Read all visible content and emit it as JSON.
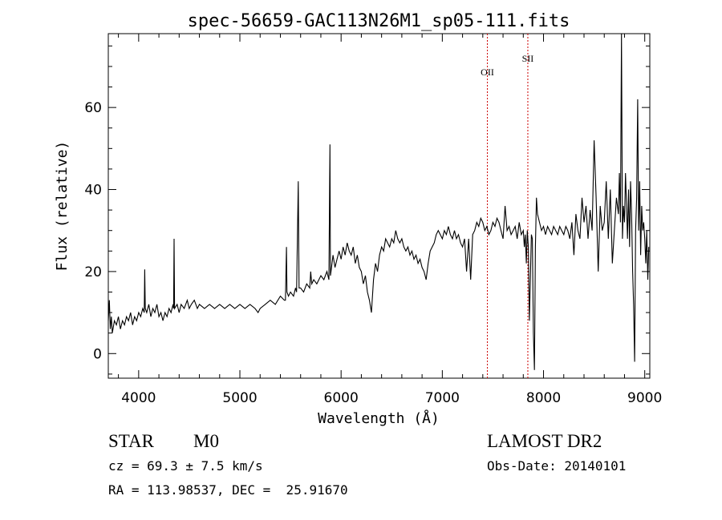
{
  "chart_data": {
    "type": "line",
    "title": "spec-56659-GAC113N26M1_sp05-111.fits",
    "xlabel": "Wavelength (Å)",
    "ylabel": "Flux (relative)",
    "xlim": [
      3700,
      9050
    ],
    "ylim": [
      -6,
      78
    ],
    "x_ticks": [
      4000,
      5000,
      6000,
      7000,
      8000,
      9000
    ],
    "x_tick_labels": [
      "4000",
      "5000",
      "6000",
      "7000",
      "8000",
      "9000"
    ],
    "y_ticks": [
      0,
      20,
      40,
      60
    ],
    "y_tick_labels": [
      "0",
      "20",
      "40",
      "60"
    ],
    "grid": false,
    "line_color": "#000000",
    "marker_color": "#cc0000",
    "lines": [
      {
        "label": "OII",
        "x": 7445
      },
      {
        "label": "SII",
        "x": 7845
      }
    ],
    "series": [
      {
        "values": [
          [
            3700,
            8
          ],
          [
            3710,
            13
          ],
          [
            3720,
            6
          ],
          [
            3730,
            9
          ],
          [
            3740,
            5
          ],
          [
            3760,
            8
          ],
          [
            3780,
            7
          ],
          [
            3800,
            9
          ],
          [
            3820,
            6
          ],
          [
            3840,
            8
          ],
          [
            3860,
            7
          ],
          [
            3880,
            9
          ],
          [
            3900,
            8
          ],
          [
            3920,
            10
          ],
          [
            3940,
            7
          ],
          [
            3960,
            9
          ],
          [
            3980,
            8
          ],
          [
            4000,
            10
          ],
          [
            4020,
            9
          ],
          [
            4040,
            11
          ],
          [
            4055,
            10
          ],
          [
            4060,
            20.5
          ],
          [
            4065,
            11
          ],
          [
            4080,
            10
          ],
          [
            4100,
            12
          ],
          [
            4120,
            9
          ],
          [
            4140,
            11
          ],
          [
            4160,
            10
          ],
          [
            4180,
            12
          ],
          [
            4200,
            9
          ],
          [
            4220,
            10
          ],
          [
            4240,
            8
          ],
          [
            4260,
            10
          ],
          [
            4280,
            9
          ],
          [
            4300,
            11
          ],
          [
            4320,
            10
          ],
          [
            4340,
            12
          ],
          [
            4345,
            11
          ],
          [
            4350,
            28
          ],
          [
            4355,
            11
          ],
          [
            4380,
            12
          ],
          [
            4400,
            10
          ],
          [
            4420,
            12
          ],
          [
            4450,
            11
          ],
          [
            4480,
            13
          ],
          [
            4500,
            11
          ],
          [
            4520,
            12
          ],
          [
            4550,
            13
          ],
          [
            4580,
            11
          ],
          [
            4600,
            12
          ],
          [
            4650,
            11
          ],
          [
            4700,
            12
          ],
          [
            4750,
            11
          ],
          [
            4800,
            12
          ],
          [
            4850,
            11
          ],
          [
            4900,
            12
          ],
          [
            4950,
            11
          ],
          [
            5000,
            12
          ],
          [
            5050,
            11
          ],
          [
            5100,
            12
          ],
          [
            5150,
            11
          ],
          [
            5180,
            10
          ],
          [
            5200,
            11
          ],
          [
            5250,
            12
          ],
          [
            5300,
            13
          ],
          [
            5350,
            12
          ],
          [
            5400,
            14
          ],
          [
            5440,
            13
          ],
          [
            5450,
            13
          ],
          [
            5460,
            26
          ],
          [
            5465,
            15
          ],
          [
            5480,
            14
          ],
          [
            5500,
            15
          ],
          [
            5530,
            14
          ],
          [
            5550,
            16
          ],
          [
            5560,
            15
          ],
          [
            5577,
            42
          ],
          [
            5585,
            16
          ],
          [
            5600,
            16
          ],
          [
            5630,
            15
          ],
          [
            5660,
            17
          ],
          [
            5690,
            16
          ],
          [
            5700,
            20
          ],
          [
            5710,
            17
          ],
          [
            5730,
            18
          ],
          [
            5760,
            17
          ],
          [
            5800,
            19
          ],
          [
            5830,
            18
          ],
          [
            5860,
            20
          ],
          [
            5880,
            18
          ],
          [
            5890,
            51
          ],
          [
            5895,
            19
          ],
          [
            5900,
            20
          ],
          [
            5920,
            24
          ],
          [
            5940,
            21
          ],
          [
            5960,
            23
          ],
          [
            5980,
            25
          ],
          [
            6000,
            23
          ],
          [
            6020,
            26
          ],
          [
            6040,
            24
          ],
          [
            6060,
            27
          ],
          [
            6080,
            25
          ],
          [
            6100,
            24
          ],
          [
            6120,
            26
          ],
          [
            6140,
            22
          ],
          [
            6160,
            24
          ],
          [
            6180,
            21
          ],
          [
            6200,
            20
          ],
          [
            6220,
            17
          ],
          [
            6240,
            19
          ],
          [
            6260,
            15
          ],
          [
            6280,
            13
          ],
          [
            6300,
            10
          ],
          [
            6320,
            18
          ],
          [
            6340,
            22
          ],
          [
            6360,
            20
          ],
          [
            6380,
            24
          ],
          [
            6400,
            26
          ],
          [
            6420,
            25
          ],
          [
            6440,
            28
          ],
          [
            6460,
            27
          ],
          [
            6480,
            26
          ],
          [
            6500,
            28
          ],
          [
            6520,
            27
          ],
          [
            6540,
            30
          ],
          [
            6560,
            28
          ],
          [
            6580,
            27
          ],
          [
            6600,
            28
          ],
          [
            6620,
            26
          ],
          [
            6640,
            25
          ],
          [
            6660,
            26
          ],
          [
            6680,
            24
          ],
          [
            6700,
            25
          ],
          [
            6720,
            23
          ],
          [
            6740,
            24
          ],
          [
            6760,
            22
          ],
          [
            6780,
            23
          ],
          [
            6800,
            21
          ],
          [
            6820,
            20
          ],
          [
            6840,
            18
          ],
          [
            6860,
            22
          ],
          [
            6880,
            25
          ],
          [
            6900,
            26
          ],
          [
            6920,
            27
          ],
          [
            6940,
            29
          ],
          [
            6960,
            30
          ],
          [
            6980,
            29
          ],
          [
            7000,
            28
          ],
          [
            7020,
            30
          ],
          [
            7040,
            29
          ],
          [
            7060,
            31
          ],
          [
            7080,
            29
          ],
          [
            7100,
            28
          ],
          [
            7120,
            30
          ],
          [
            7140,
            28
          ],
          [
            7160,
            29
          ],
          [
            7180,
            27
          ],
          [
            7200,
            26
          ],
          [
            7220,
            28
          ],
          [
            7240,
            20
          ],
          [
            7260,
            28
          ],
          [
            7280,
            18
          ],
          [
            7300,
            29
          ],
          [
            7320,
            30
          ],
          [
            7340,
            32
          ],
          [
            7360,
            31
          ],
          [
            7380,
            33
          ],
          [
            7400,
            32
          ],
          [
            7420,
            30
          ],
          [
            7440,
            31
          ],
          [
            7460,
            29
          ],
          [
            7480,
            30
          ],
          [
            7500,
            32
          ],
          [
            7520,
            31
          ],
          [
            7540,
            33
          ],
          [
            7560,
            32
          ],
          [
            7580,
            30
          ],
          [
            7600,
            28
          ],
          [
            7620,
            36
          ],
          [
            7640,
            30
          ],
          [
            7660,
            31
          ],
          [
            7680,
            29
          ],
          [
            7700,
            30
          ],
          [
            7720,
            31
          ],
          [
            7740,
            28
          ],
          [
            7760,
            32
          ],
          [
            7780,
            29
          ],
          [
            7800,
            30
          ],
          [
            7810,
            26
          ],
          [
            7820,
            29
          ],
          [
            7830,
            22
          ],
          [
            7840,
            30
          ],
          [
            7850,
            26
          ],
          [
            7860,
            8
          ],
          [
            7870,
            18
          ],
          [
            7880,
            29
          ],
          [
            7890,
            28
          ],
          [
            7900,
            5
          ],
          [
            7910,
            -4
          ],
          [
            7920,
            26
          ],
          [
            7930,
            38
          ],
          [
            7940,
            34
          ],
          [
            7960,
            32
          ],
          [
            7980,
            30
          ],
          [
            8000,
            31
          ],
          [
            8020,
            29
          ],
          [
            8040,
            31
          ],
          [
            8060,
            30
          ],
          [
            8080,
            29
          ],
          [
            8100,
            31
          ],
          [
            8120,
            30
          ],
          [
            8140,
            29
          ],
          [
            8160,
            31
          ],
          [
            8180,
            30
          ],
          [
            8200,
            29
          ],
          [
            8220,
            31
          ],
          [
            8240,
            30
          ],
          [
            8260,
            28
          ],
          [
            8280,
            32
          ],
          [
            8300,
            24
          ],
          [
            8320,
            34
          ],
          [
            8340,
            30
          ],
          [
            8360,
            28
          ],
          [
            8380,
            38
          ],
          [
            8400,
            32
          ],
          [
            8420,
            36
          ],
          [
            8440,
            28
          ],
          [
            8460,
            35
          ],
          [
            8480,
            30
          ],
          [
            8500,
            52
          ],
          [
            8520,
            38
          ],
          [
            8540,
            20
          ],
          [
            8560,
            36
          ],
          [
            8580,
            30
          ],
          [
            8600,
            32
          ],
          [
            8620,
            42
          ],
          [
            8640,
            28
          ],
          [
            8660,
            40
          ],
          [
            8680,
            22
          ],
          [
            8700,
            30
          ],
          [
            8720,
            38
          ],
          [
            8740,
            34
          ],
          [
            8750,
            44
          ],
          [
            8760,
            32
          ],
          [
            8770,
            78
          ],
          [
            8780,
            28
          ],
          [
            8790,
            36
          ],
          [
            8800,
            32
          ],
          [
            8810,
            44
          ],
          [
            8820,
            36
          ],
          [
            8830,
            28
          ],
          [
            8840,
            40
          ],
          [
            8850,
            26
          ],
          [
            8860,
            42
          ],
          [
            8870,
            34
          ],
          [
            8880,
            20
          ],
          [
            8890,
            12
          ],
          [
            8900,
            -2
          ],
          [
            8910,
            30
          ],
          [
            8920,
            38
          ],
          [
            8930,
            62
          ],
          [
            8940,
            30
          ],
          [
            8950,
            42
          ],
          [
            8960,
            24
          ],
          [
            8970,
            36
          ],
          [
            8980,
            30
          ],
          [
            8990,
            32
          ],
          [
            9000,
            28
          ],
          [
            9010,
            22
          ],
          [
            9020,
            30
          ],
          [
            9030,
            18
          ],
          [
            9040,
            26
          ]
        ]
      }
    ]
  },
  "info": {
    "object_class": "STAR",
    "subclass": "M0",
    "survey": "LAMOST DR2",
    "redshift_line": "cz = 69.3 ± 7.5 km/s",
    "obs_date_line": "Obs-Date: 20140101",
    "coords_line": "RA = 113.98537, DEC =  25.91670"
  }
}
